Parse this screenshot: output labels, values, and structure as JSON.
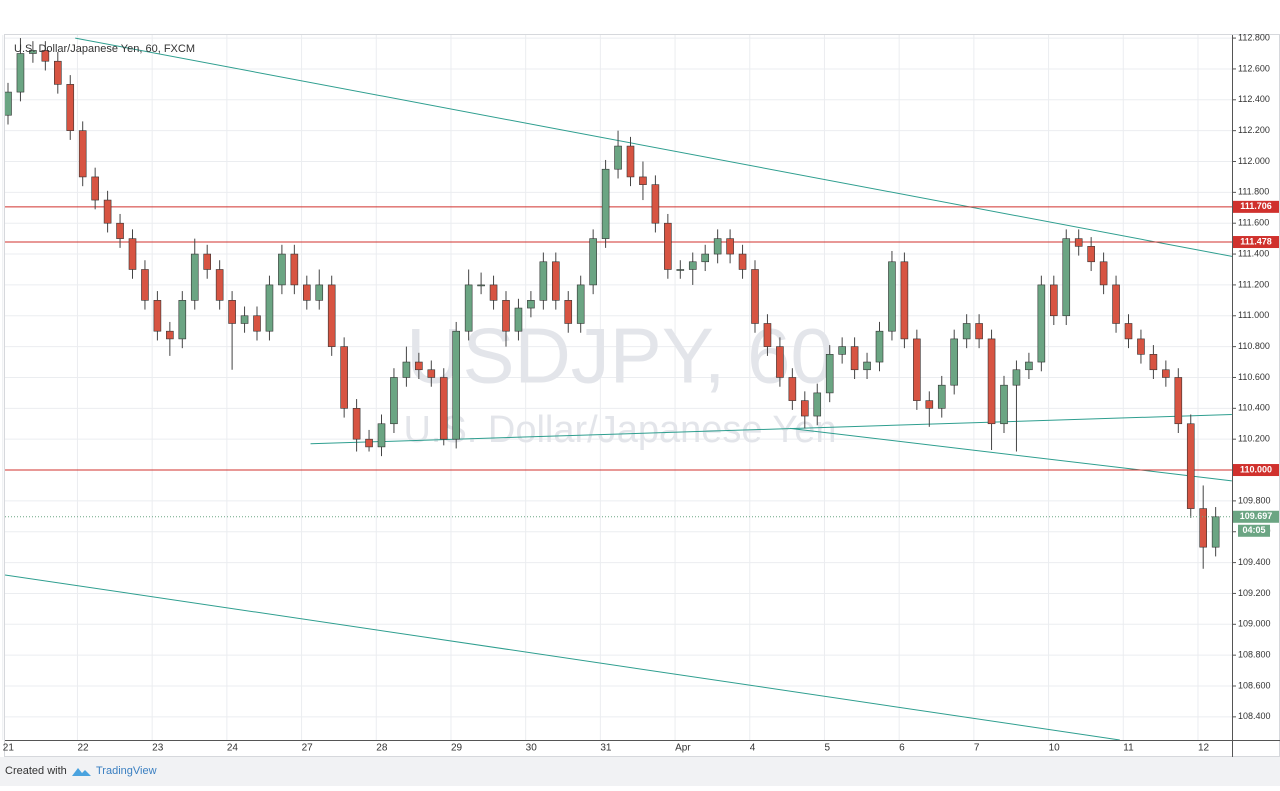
{
  "chart_data": {
    "type": "candlestick",
    "title": "U.S. Dollar/Japanese Yen, 60, FXCM",
    "watermark": "USDJPY, 60",
    "watermark_subtitle": "U.S. Dollar/Japanese Yen",
    "categories": [
      "21",
      null,
      null,
      null,
      null,
      null,
      "22",
      null,
      null,
      null,
      null,
      null,
      "23",
      null,
      null,
      null,
      null,
      null,
      "24",
      null,
      null,
      null,
      null,
      null,
      "27",
      null,
      null,
      null,
      null,
      null,
      "28",
      null,
      null,
      null,
      null,
      null,
      "29",
      null,
      null,
      null,
      null,
      null,
      "30",
      null,
      null,
      null,
      null,
      null,
      "31",
      null,
      null,
      null,
      null,
      null,
      "Apr",
      null,
      null,
      null,
      null,
      null,
      "4",
      null,
      null,
      null,
      null,
      null,
      "5",
      null,
      null,
      null,
      null,
      null,
      "6",
      null,
      null,
      null,
      null,
      null,
      "7",
      null,
      null,
      null,
      null,
      null,
      "10",
      null,
      null,
      null,
      null,
      null,
      "11",
      null,
      null,
      null,
      null,
      null,
      "12",
      null
    ],
    "open": [
      112.3,
      112.45,
      112.7,
      112.72,
      112.65,
      112.5,
      112.2,
      111.9,
      111.75,
      111.6,
      111.5,
      111.3,
      111.1,
      110.9,
      110.85,
      111.1,
      111.4,
      111.3,
      111.1,
      110.95,
      111.0,
      110.9,
      111.2,
      111.4,
      111.2,
      111.1,
      111.2,
      110.8,
      110.4,
      110.2,
      110.15,
      110.3,
      110.6,
      110.7,
      110.65,
      110.6,
      110.2,
      110.9,
      111.2,
      111.2,
      111.1,
      110.9,
      111.05,
      111.1,
      111.35,
      111.1,
      110.95,
      111.2,
      111.5,
      111.95,
      112.1,
      111.9,
      111.85,
      111.6,
      111.3,
      111.3,
      111.35,
      111.4,
      111.5,
      111.4,
      111.3,
      110.95,
      110.8,
      110.6,
      110.45,
      110.35,
      110.5,
      110.75,
      110.8,
      110.65,
      110.7,
      110.9,
      111.35,
      110.85,
      110.45,
      110.4,
      110.55,
      110.85,
      110.95,
      110.85,
      110.3,
      110.55,
      110.65,
      110.7,
      111.2,
      111.0,
      111.5,
      111.45,
      111.35,
      111.2,
      110.95,
      110.85,
      110.75,
      110.65,
      110.6,
      110.3,
      109.75,
      109.5
    ],
    "high": [
      112.51,
      112.8,
      112.78,
      112.78,
      112.71,
      112.56,
      112.26,
      111.96,
      111.81,
      111.66,
      111.56,
      111.36,
      111.16,
      110.96,
      111.16,
      111.5,
      111.46,
      111.36,
      111.16,
      111.06,
      111.06,
      111.26,
      111.46,
      111.46,
      111.26,
      111.3,
      111.26,
      110.86,
      110.46,
      110.26,
      110.36,
      110.66,
      110.8,
      110.76,
      110.71,
      110.66,
      110.96,
      111.3,
      111.28,
      111.26,
      111.16,
      111.11,
      111.16,
      111.41,
      111.41,
      111.16,
      111.26,
      111.56,
      112.01,
      112.2,
      112.16,
      112.0,
      111.91,
      111.66,
      111.36,
      111.41,
      111.46,
      111.56,
      111.56,
      111.46,
      111.36,
      111.01,
      110.86,
      110.66,
      110.51,
      110.56,
      110.81,
      110.86,
      110.86,
      110.76,
      110.96,
      111.42,
      111.41,
      110.91,
      110.51,
      110.61,
      110.91,
      111.01,
      111.01,
      110.91,
      110.61,
      110.71,
      110.76,
      111.26,
      111.26,
      111.56,
      111.56,
      111.51,
      111.41,
      111.26,
      111.01,
      110.91,
      110.81,
      110.71,
      110.66,
      110.36,
      109.9,
      109.76
    ],
    "low": [
      112.24,
      112.39,
      112.64,
      112.59,
      112.44,
      112.14,
      111.84,
      111.69,
      111.54,
      111.44,
      111.24,
      111.04,
      110.84,
      110.74,
      110.79,
      111.04,
      111.24,
      111.04,
      110.65,
      110.89,
      110.84,
      110.84,
      111.14,
      111.14,
      111.04,
      111.04,
      110.74,
      110.34,
      110.12,
      110.12,
      110.09,
      110.24,
      110.54,
      110.59,
      110.54,
      110.16,
      110.14,
      110.84,
      111.14,
      111.04,
      110.8,
      110.84,
      110.99,
      111.04,
      111.04,
      110.89,
      110.89,
      111.14,
      111.44,
      111.89,
      111.84,
      111.75,
      111.54,
      111.24,
      111.24,
      111.2,
      111.29,
      111.34,
      111.34,
      111.24,
      110.89,
      110.74,
      110.54,
      110.39,
      110.27,
      110.29,
      110.44,
      110.69,
      110.59,
      110.59,
      110.64,
      110.84,
      110.79,
      110.39,
      110.28,
      110.34,
      110.49,
      110.79,
      110.79,
      110.13,
      110.24,
      110.12,
      110.59,
      110.64,
      110.94,
      110.94,
      111.39,
      111.29,
      111.14,
      110.89,
      110.79,
      110.69,
      110.59,
      110.54,
      110.24,
      109.69,
      109.36,
      109.44
    ],
    "close": [
      112.45,
      112.7,
      112.72,
      112.65,
      112.5,
      112.2,
      111.9,
      111.75,
      111.6,
      111.5,
      111.3,
      111.1,
      110.9,
      110.85,
      111.1,
      111.4,
      111.3,
      111.1,
      110.95,
      111.0,
      110.9,
      111.2,
      111.4,
      111.2,
      111.1,
      111.2,
      110.8,
      110.4,
      110.2,
      110.15,
      110.3,
      110.6,
      110.7,
      110.65,
      110.6,
      110.2,
      110.9,
      111.2,
      111.2,
      111.1,
      110.9,
      111.05,
      111.1,
      111.35,
      111.1,
      110.95,
      111.2,
      111.5,
      111.95,
      112.1,
      111.9,
      111.85,
      111.6,
      111.3,
      111.3,
      111.35,
      111.4,
      111.5,
      111.4,
      111.3,
      110.95,
      110.8,
      110.6,
      110.45,
      110.35,
      110.5,
      110.75,
      110.8,
      110.65,
      110.7,
      110.9,
      111.35,
      110.85,
      110.45,
      110.4,
      110.55,
      110.85,
      110.95,
      110.85,
      110.3,
      110.55,
      110.65,
      110.7,
      111.2,
      111.0,
      111.5,
      111.45,
      111.35,
      111.2,
      110.95,
      110.85,
      110.75,
      110.65,
      110.6,
      110.3,
      109.75,
      109.5,
      109.697
    ],
    "up_color": "#6ba583",
    "down_color": "#d75442",
    "ylim": [
      108.25,
      112.82
    ],
    "yticks": [
      {
        "value": 108.4,
        "label": "108.400"
      },
      {
        "value": 108.6,
        "label": "108.600"
      },
      {
        "value": 108.8,
        "label": "108.800"
      },
      {
        "value": 109.0,
        "label": "109.000"
      },
      {
        "value": 109.2,
        "label": "109.200"
      },
      {
        "value": 109.4,
        "label": "109.400"
      },
      {
        "value": 109.6,
        "label": "109.600"
      },
      {
        "value": 109.8,
        "label": "109.800"
      },
      {
        "value": 110.0,
        "label": "110.000"
      },
      {
        "value": 110.2,
        "label": "110.200"
      },
      {
        "value": 110.4,
        "label": "110.400"
      },
      {
        "value": 110.6,
        "label": "110.600"
      },
      {
        "value": 110.8,
        "label": "110.800"
      },
      {
        "value": 111.0,
        "label": "111.000"
      },
      {
        "value": 111.2,
        "label": "111.200"
      },
      {
        "value": 111.4,
        "label": "111.400"
      },
      {
        "value": 111.6,
        "label": "111.600"
      },
      {
        "value": 111.8,
        "label": "111.800"
      },
      {
        "value": 112.0,
        "label": "112.000"
      },
      {
        "value": 112.2,
        "label": "112.200"
      },
      {
        "value": 112.4,
        "label": "112.400"
      },
      {
        "value": 112.6,
        "label": "112.600"
      },
      {
        "value": 112.8,
        "label": "112.800"
      }
    ],
    "grid": true,
    "levels": [
      {
        "value": 111.706,
        "label": "111.706"
      },
      {
        "value": 111.478,
        "label": "111.478"
      },
      {
        "value": 110.0,
        "label": "110.000"
      }
    ],
    "level_color": "#d0312d",
    "current_price": {
      "value": 109.697,
      "label": "109.697"
    },
    "countdown": "04:05",
    "trend_lines": [
      {
        "x": [
          5.4,
          100.6
        ],
        "y": [
          112.8,
          111.35
        ]
      },
      {
        "x": [
          -0.24,
          89.3
        ],
        "y": [
          109.32,
          108.25
        ]
      },
      {
        "x": [
          24.3,
          98.3
        ],
        "y": [
          110.17,
          110.36
        ]
      },
      {
        "x": [
          62.8,
          98.3
        ],
        "y": [
          110.27,
          109.93
        ]
      }
    ],
    "trend_color": "#2e9e8f"
  },
  "footer": {
    "created": "Created with",
    "brand": "TradingView"
  }
}
